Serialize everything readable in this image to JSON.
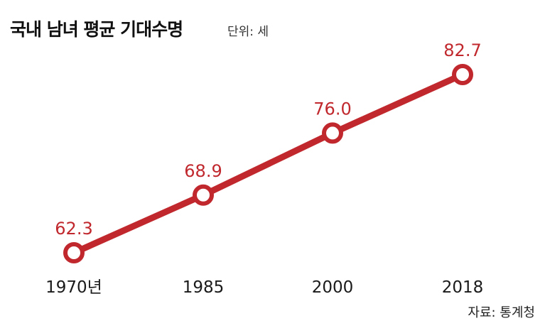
{
  "header": {
    "title": "국내 남녀 평균 기대수명",
    "unit": "단위: 세"
  },
  "footer": {
    "source": "자료: 통계청"
  },
  "colors": {
    "line": "#c0282d",
    "marker_fill": "#ffffff",
    "label": "#c0282d"
  },
  "chart_data": {
    "type": "line",
    "title": "국내 남녀 평균 기대수명",
    "unit": "단위: 세",
    "categories": [
      "1970년",
      "1985",
      "2000",
      "2018"
    ],
    "series": [
      {
        "values": [
          62.3,
          68.9,
          76.0,
          82.7
        ],
        "labels": [
          "62.3",
          "68.9",
          "76.0",
          "82.7"
        ]
      }
    ],
    "grid": false,
    "legend": "none"
  }
}
